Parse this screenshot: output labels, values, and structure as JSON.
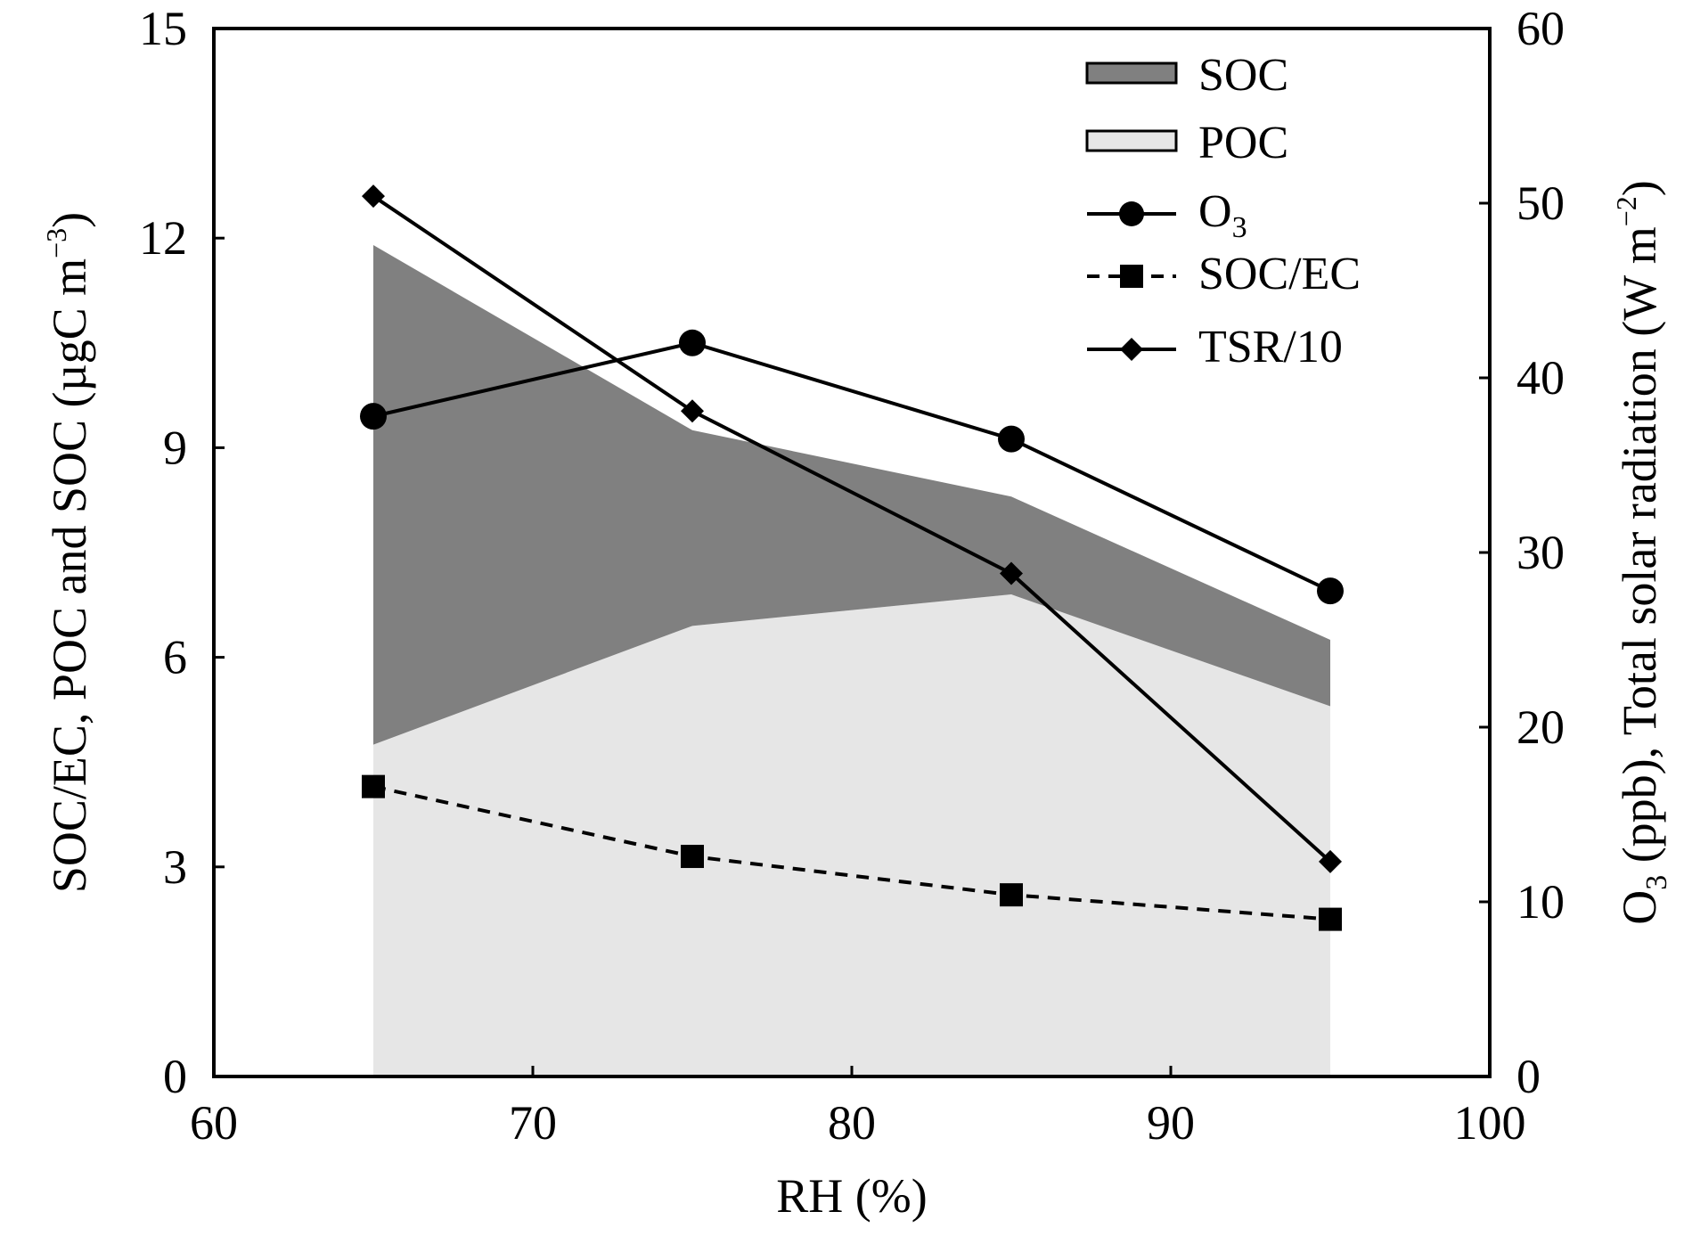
{
  "colors": {
    "soc_fill": "#808080",
    "poc_fill": "#e6e6e6",
    "line": "#000000",
    "background": "#ffffff"
  },
  "chart_data": {
    "type": "area",
    "x": [
      65,
      75,
      85,
      95
    ],
    "xlim": [
      60,
      100
    ],
    "ylim_left": [
      0,
      15
    ],
    "ylim_right": [
      0,
      60
    ],
    "x_ticks": [
      60,
      70,
      80,
      90,
      100
    ],
    "y_ticks_left": [
      0,
      3,
      6,
      9,
      12,
      15
    ],
    "y_ticks_right": [
      0,
      10,
      20,
      30,
      40,
      50,
      60
    ],
    "xlabel": "RH (%)",
    "ylabel_left": "SOC/EC, POC  and  SOC (µgC m−3)",
    "ylabel_left_main": "SOC/EC, POC  and  SOC (µgC m",
    "ylabel_left_sup": "−3",
    "ylabel_left_tail": ")",
    "ylabel_right": "O3 (ppb), Total solar radiation (W m−2)",
    "ylabel_right_pre": "O",
    "ylabel_right_sub": "3",
    "ylabel_right_main": " (ppb), Total solar radiation (W m",
    "ylabel_right_sup": "−2",
    "ylabel_right_tail": ")",
    "legend_position": "top-right",
    "series": [
      {
        "name": "POC",
        "axis": "left",
        "style": "area",
        "values": [
          4.75,
          6.45,
          6.9,
          5.3
        ]
      },
      {
        "name": "SOC",
        "axis": "left",
        "style": "stacked-area",
        "values": [
          7.15,
          2.8,
          1.4,
          0.95
        ]
      },
      {
        "name": "O3",
        "legend_main": "O",
        "legend_sub": "3",
        "axis": "right",
        "style": "line-circle",
        "values": [
          37.8,
          42.0,
          36.5,
          27.8
        ]
      },
      {
        "name": "SOC/EC",
        "axis": "left",
        "style": "dashed-square",
        "values": [
          4.15,
          3.15,
          2.6,
          2.25
        ]
      },
      {
        "name": "TSR/10",
        "axis": "right",
        "style": "line-diamond",
        "values": [
          50.4,
          38.1,
          28.8,
          12.3
        ]
      }
    ],
    "legend": [
      "SOC",
      "POC",
      "O3",
      "SOC/EC",
      "TSR/10"
    ]
  }
}
